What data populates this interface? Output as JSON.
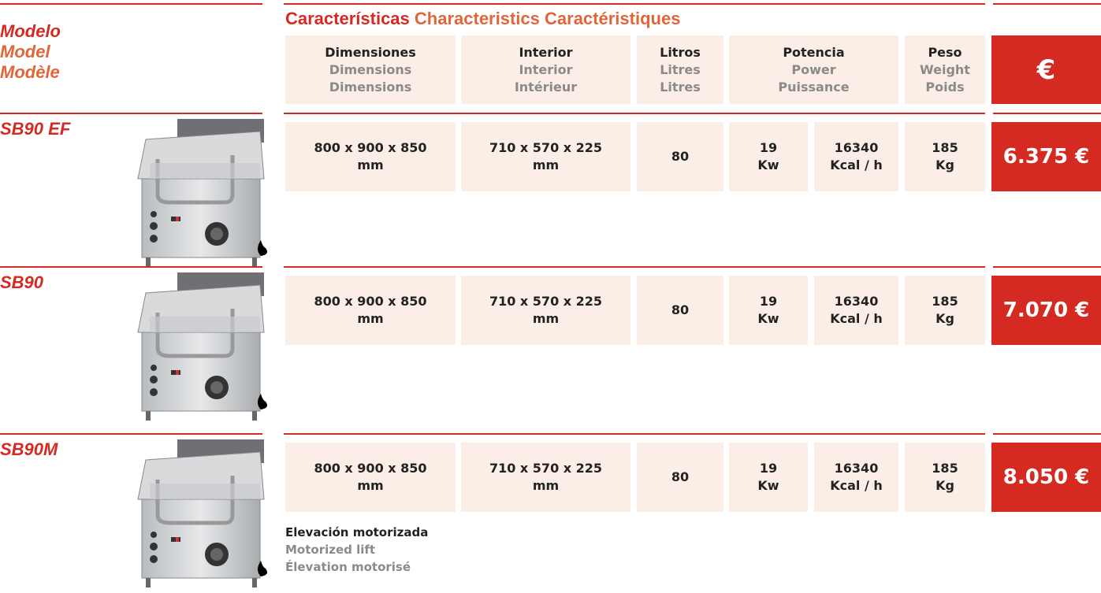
{
  "header": {
    "model": [
      "Modelo",
      "Model",
      "Modèle"
    ],
    "characteristics": [
      "Características",
      "Characteristics",
      "Caractéristiques"
    ],
    "columns": [
      {
        "lines": [
          "Dimensiones",
          "Dimensions",
          "Dimensions"
        ]
      },
      {
        "lines": [
          "Interior",
          "Interior",
          "Intérieur"
        ]
      },
      {
        "lines": [
          "Litros",
          "Litres",
          "Litres"
        ]
      },
      {
        "lines": [
          "Potencia",
          "Power",
          "Puissance"
        ]
      },
      {
        "lines": [
          "Peso",
          "Weight",
          "Poids"
        ]
      }
    ],
    "price_symbol": "€"
  },
  "rows": [
    {
      "model": "SB90 EF",
      "dimensions": [
        "800 x 900 x 850",
        "mm"
      ],
      "interior": [
        "710 x 570 x 225",
        "mm"
      ],
      "litres": [
        "80"
      ],
      "power_kw": [
        "19",
        "Kw"
      ],
      "power_kcal": [
        "16340",
        "Kcal / h"
      ],
      "weight": [
        "185",
        "Kg"
      ],
      "price": "6.375 €"
    },
    {
      "model": "SB90",
      "dimensions": [
        "800 x 900 x 850",
        "mm"
      ],
      "interior": [
        "710 x 570 x 225",
        "mm"
      ],
      "litres": [
        "80"
      ],
      "power_kw": [
        "19",
        "Kw"
      ],
      "power_kcal": [
        "16340",
        "Kcal / h"
      ],
      "weight": [
        "185",
        "Kg"
      ],
      "price": "7.070 €"
    },
    {
      "model": "SB90M",
      "dimensions": [
        "800 x 900 x 850",
        "mm"
      ],
      "interior": [
        "710 x 570 x 225",
        "mm"
      ],
      "litres": [
        "80"
      ],
      "power_kw": [
        "19",
        "Kw"
      ],
      "power_kcal": [
        "16340",
        "Kcal / h"
      ],
      "weight": [
        "185",
        "Kg"
      ],
      "price": "8.050 €",
      "note": [
        "Elevación motorizada",
        "Motorized lift",
        "Élevation motorisé"
      ]
    }
  ]
}
